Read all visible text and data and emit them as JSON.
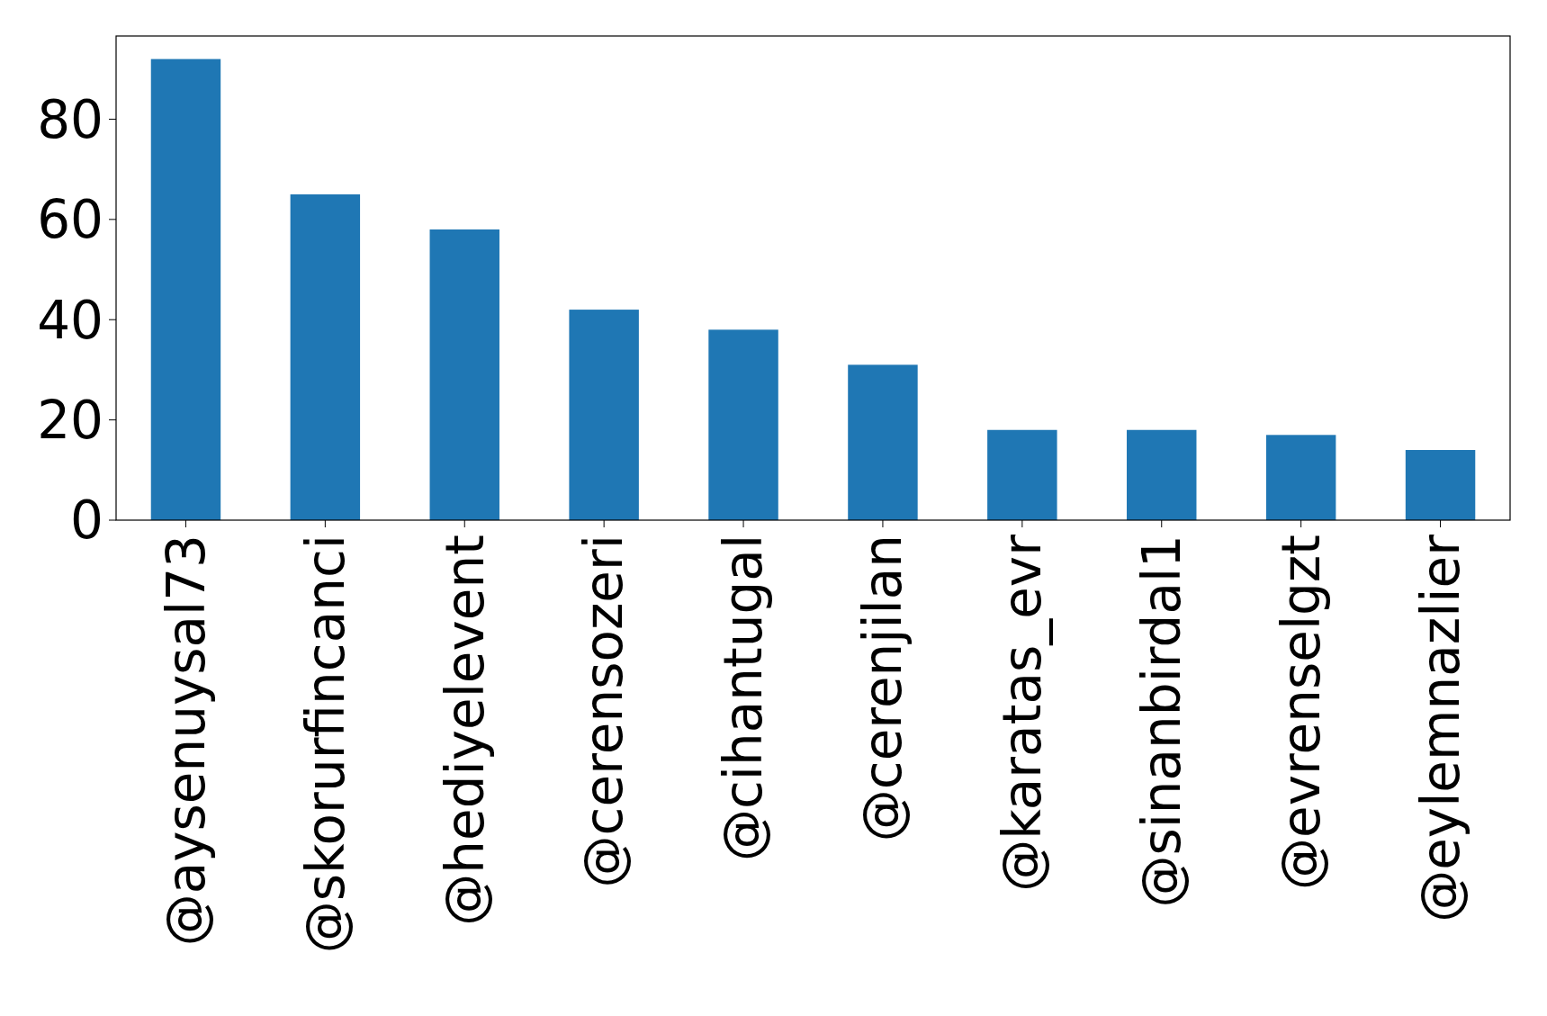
{
  "chart_data": {
    "type": "bar",
    "categories": [
      "@aysenuysal73",
      "@skorurfincanci",
      "@hediyelevent",
      "@cerensozeri",
      "@cihantugal",
      "@cerenjilan",
      "@karatas_evr",
      "@sinanbirdal1",
      "@evrenselgzt",
      "@eylemnazlier"
    ],
    "values": [
      92,
      65,
      58,
      42,
      38,
      31,
      18,
      18,
      17,
      14
    ],
    "color": "#1f77b4",
    "ylim": [
      0,
      96.6
    ],
    "yticks": [
      0,
      20,
      40,
      60,
      80
    ],
    "grid": false
  }
}
